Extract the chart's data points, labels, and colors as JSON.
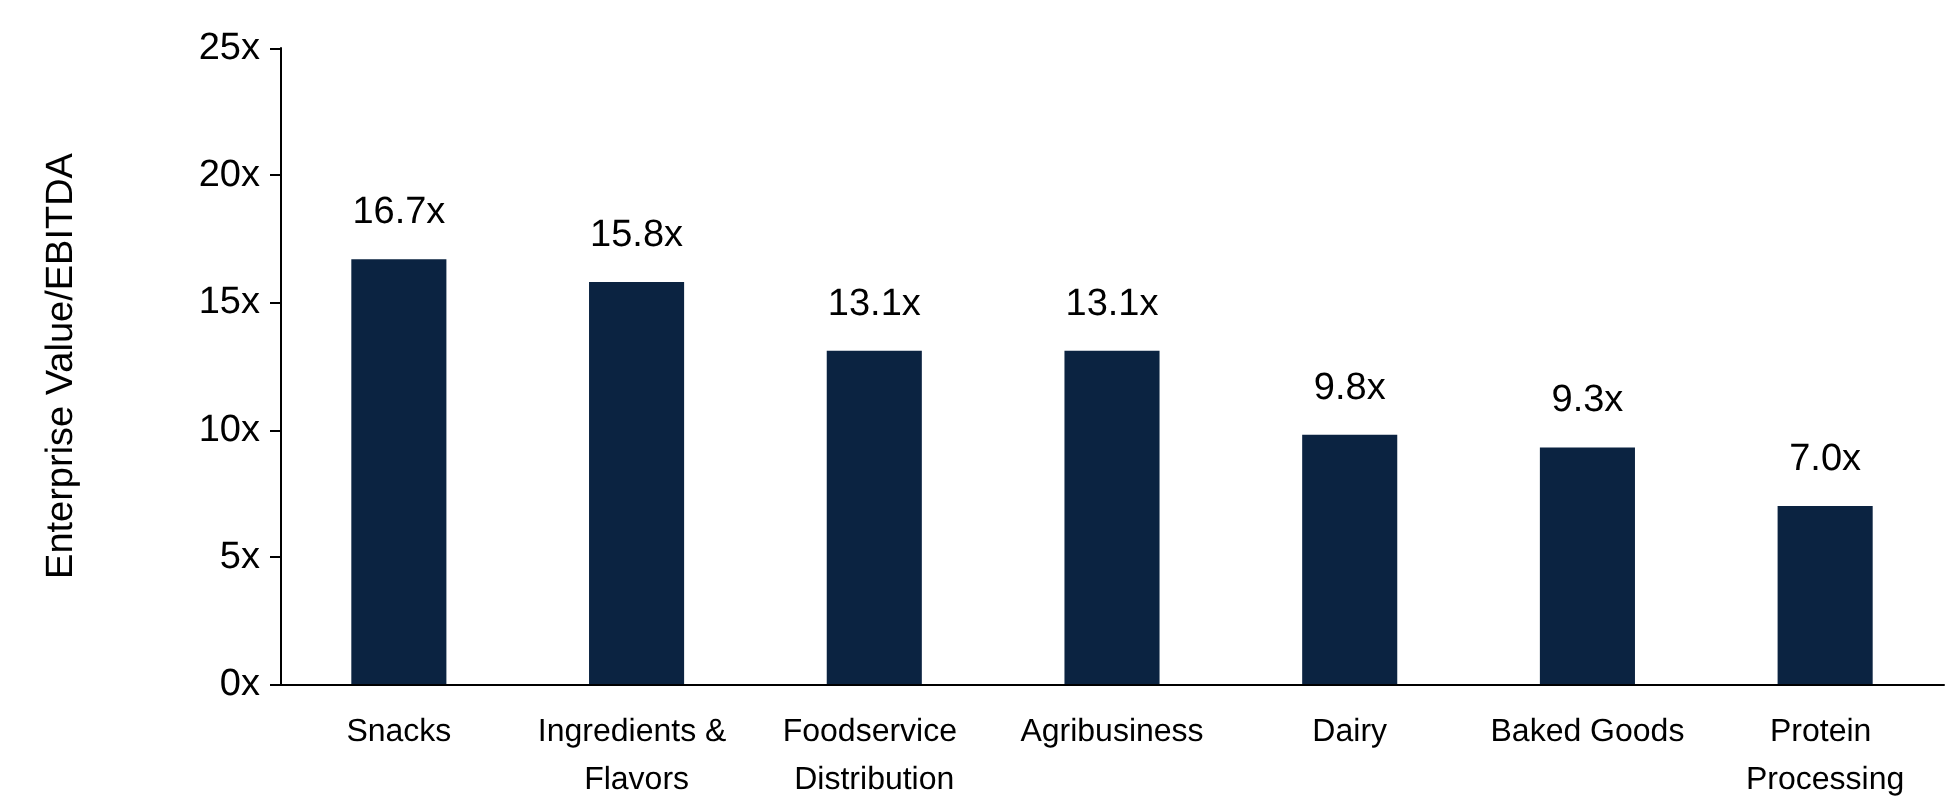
{
  "chart_data": {
    "type": "bar",
    "ylabel": "Enterprise Value/EBITDA",
    "categories": [
      "Snacks",
      "Ingredients & Flavors",
      "Foodservice Distribution",
      "Agribusiness",
      "Dairy",
      "Baked Goods",
      "Protein Processing"
    ],
    "values": [
      16.7,
      15.8,
      13.1,
      13.1,
      9.8,
      9.3,
      7.0
    ],
    "value_labels": [
      "16.7x",
      "15.8x",
      "13.1x",
      "13.1x",
      "9.8x",
      "9.3x",
      "7.0x"
    ],
    "color": "#0b2341",
    "ylim": [
      0,
      25
    ],
    "yticks": [
      {
        "value": 0,
        "label": "0x"
      },
      {
        "value": 5,
        "label": "5x"
      },
      {
        "value": 10,
        "label": "10x"
      },
      {
        "value": 15,
        "label": "15x"
      },
      {
        "value": 20,
        "label": "20x"
      },
      {
        "value": 25,
        "label": "25x"
      }
    ],
    "grid": false
  }
}
